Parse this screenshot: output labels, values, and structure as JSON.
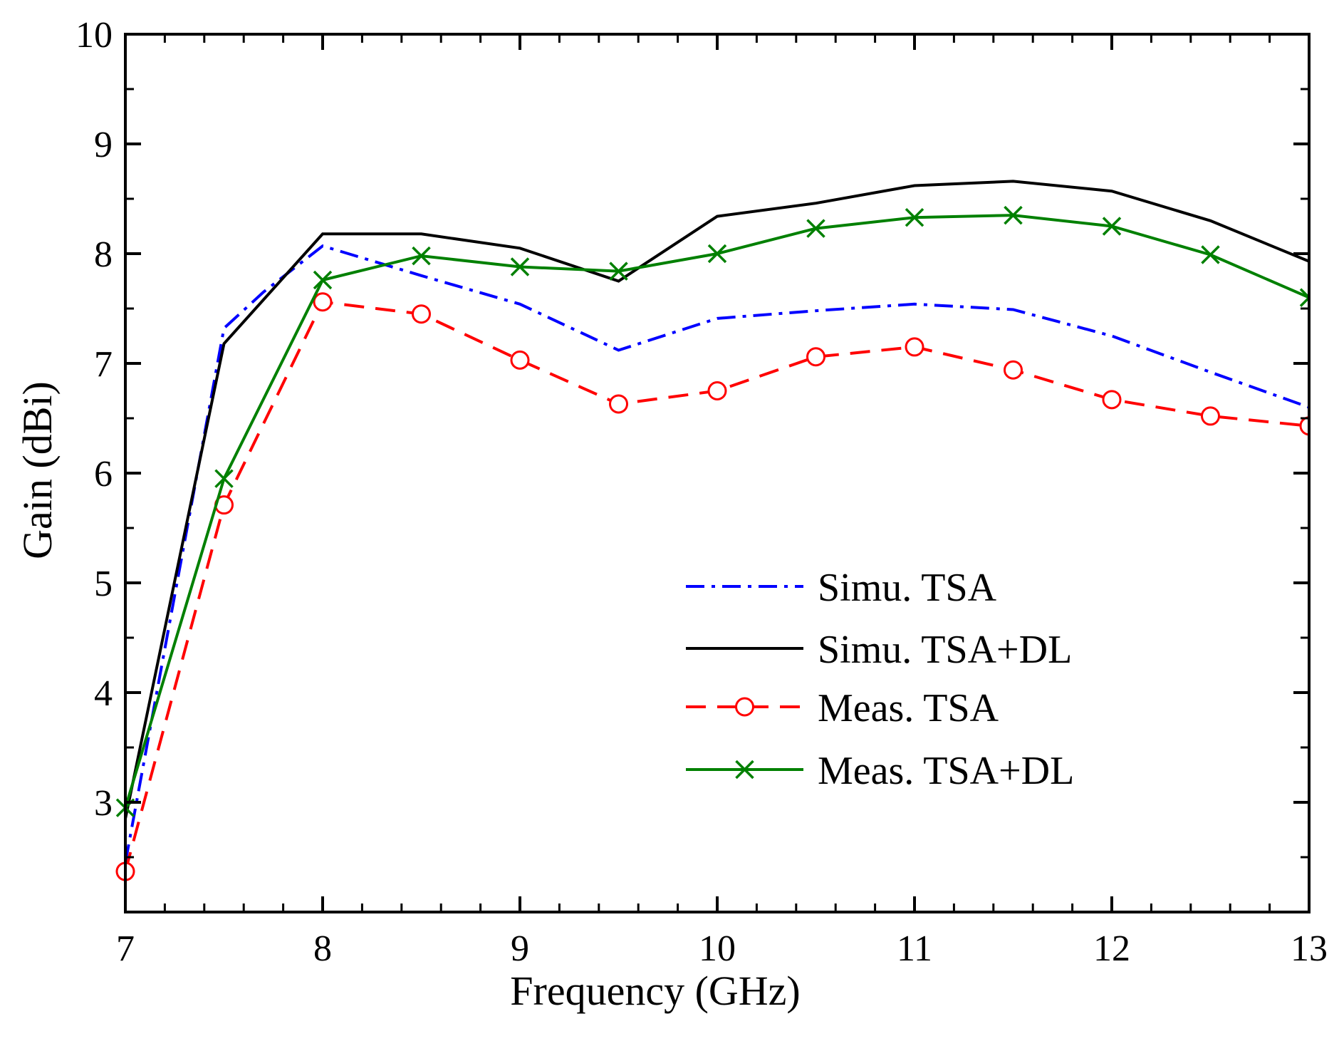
{
  "chart_data": {
    "type": "line",
    "title": "",
    "xlabel": "Frequency (GHz)",
    "ylabel": "Gain (dBi)",
    "xlim": [
      7,
      13
    ],
    "ylim": [
      2,
      10
    ],
    "xticks": [
      7,
      8,
      9,
      10,
      11,
      12,
      13
    ],
    "yticks": [
      3,
      4,
      5,
      6,
      7,
      8,
      9,
      10
    ],
    "x": [
      7,
      7.5,
      8,
      8.5,
      9,
      9.5,
      10,
      10.5,
      11,
      11.5,
      12,
      12.5,
      13
    ],
    "legend_position": "center-right",
    "series": [
      {
        "name": "Simu. TSA",
        "color": "#0000ff",
        "dash": "dash-dot",
        "marker": "none",
        "x": [
          7,
          7.5,
          7.7,
          8.0,
          8.5,
          9,
          9.5,
          10,
          10.5,
          11,
          11.5,
          12,
          12.5,
          13
        ],
        "values": [
          2.45,
          7.32,
          7.65,
          8.07,
          7.8,
          7.54,
          7.12,
          7.41,
          7.48,
          7.54,
          7.49,
          7.25,
          6.92,
          6.6
        ]
      },
      {
        "name": "Simu. TSA+DL",
        "color": "#000000",
        "dash": "solid",
        "marker": "none",
        "x": [
          7,
          7.5,
          8,
          8.5,
          9,
          9.5,
          10,
          10.5,
          11,
          11.5,
          12,
          12.5,
          13
        ],
        "values": [
          2.85,
          7.18,
          8.18,
          8.18,
          8.05,
          7.75,
          8.34,
          8.46,
          8.62,
          8.66,
          8.57,
          8.3,
          7.93
        ]
      },
      {
        "name": "Meas. TSA",
        "color": "#ff0000",
        "dash": "dashed",
        "marker": "circle",
        "x": [
          7,
          7.5,
          8,
          8.5,
          9,
          9.5,
          10,
          10.5,
          11,
          11.5,
          12,
          12.5,
          13
        ],
        "values": [
          2.37,
          5.71,
          7.56,
          7.45,
          7.03,
          6.63,
          6.75,
          7.06,
          7.15,
          6.94,
          6.67,
          6.52,
          6.43
        ]
      },
      {
        "name": "Meas. TSA+DL",
        "color": "#008000",
        "dash": "solid",
        "marker": "x",
        "x": [
          7,
          7.5,
          8,
          8.5,
          9,
          9.5,
          10,
          10.5,
          11,
          11.5,
          12,
          12.5,
          13
        ],
        "values": [
          2.95,
          5.95,
          7.76,
          7.98,
          7.88,
          7.84,
          8.0,
          8.23,
          8.33,
          8.35,
          8.25,
          7.99,
          7.6
        ]
      }
    ]
  }
}
